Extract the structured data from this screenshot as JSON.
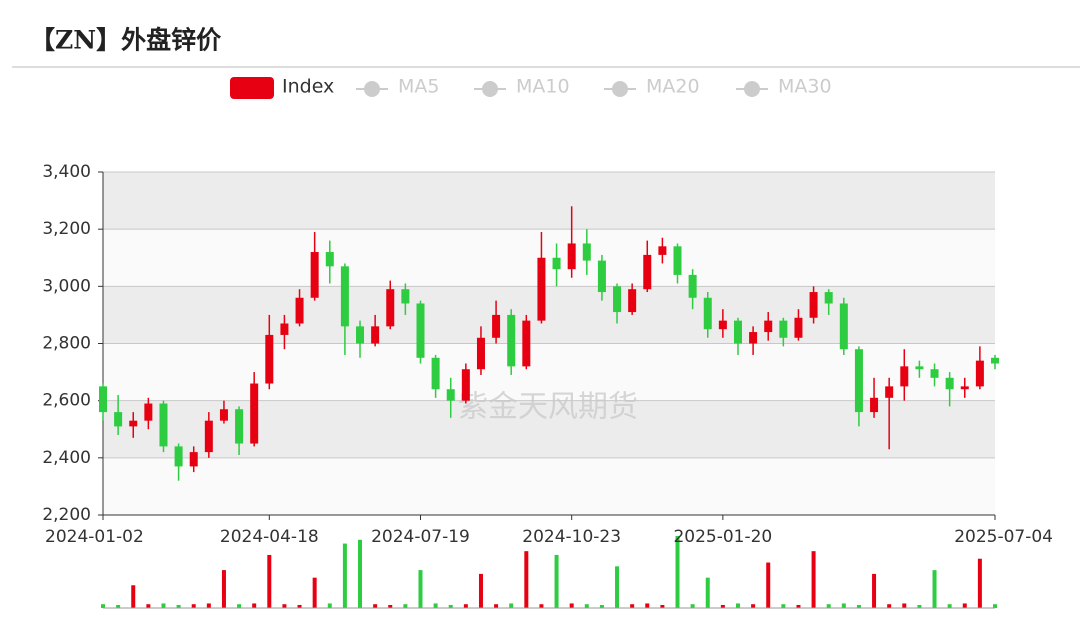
{
  "chart_data": {
    "type": "candlestick",
    "title": "【ZN】外盘锌价",
    "watermark": "紫金天风期货",
    "legend": [
      "Index",
      "MA5",
      "MA10",
      "MA20",
      "MA30"
    ],
    "up_color": "#e60012",
    "down_color": "#2ecc40",
    "categories": [
      "2024-01-02",
      null,
      null,
      null,
      null,
      null,
      null,
      null,
      null,
      null,
      null,
      "2024-04-18",
      null,
      null,
      null,
      null,
      null,
      null,
      null,
      null,
      null,
      "2024-07-19",
      null,
      null,
      null,
      null,
      null,
      null,
      null,
      null,
      null,
      "2024-10-23",
      null,
      null,
      null,
      null,
      null,
      null,
      null,
      null,
      null,
      "2025-01-20",
      null,
      null,
      null,
      null,
      null,
      null,
      null,
      null,
      null,
      null,
      null,
      null,
      null,
      null,
      null,
      null,
      null,
      "2025-07-04"
    ],
    "series": [
      {
        "name": "Index",
        "values": [
          [
            2650,
            2560,
            2530,
            2660
          ],
          [
            2560,
            2510,
            2480,
            2620
          ],
          [
            2510,
            2530,
            2470,
            2560
          ],
          [
            2530,
            2590,
            2500,
            2610
          ],
          [
            2590,
            2440,
            2420,
            2600
          ],
          [
            2440,
            2370,
            2320,
            2450
          ],
          [
            2370,
            2420,
            2350,
            2440
          ],
          [
            2420,
            2530,
            2400,
            2560
          ],
          [
            2530,
            2570,
            2520,
            2600
          ],
          [
            2570,
            2450,
            2410,
            2580
          ],
          [
            2450,
            2660,
            2440,
            2700
          ],
          [
            2660,
            2830,
            2640,
            2900
          ],
          [
            2830,
            2870,
            2780,
            2900
          ],
          [
            2870,
            2960,
            2860,
            2990
          ],
          [
            2960,
            3120,
            2950,
            3190
          ],
          [
            3120,
            3070,
            3010,
            3160
          ],
          [
            3070,
            2860,
            2760,
            3080
          ],
          [
            2860,
            2800,
            2750,
            2880
          ],
          [
            2800,
            2860,
            2790,
            2900
          ],
          [
            2860,
            2990,
            2850,
            3020
          ],
          [
            2990,
            2940,
            2900,
            3010
          ],
          [
            2940,
            2750,
            2730,
            2950
          ],
          [
            2750,
            2640,
            2610,
            2760
          ],
          [
            2640,
            2600,
            2540,
            2680
          ],
          [
            2600,
            2710,
            2590,
            2730
          ],
          [
            2710,
            2820,
            2690,
            2860
          ],
          [
            2820,
            2900,
            2800,
            2950
          ],
          [
            2900,
            2720,
            2690,
            2920
          ],
          [
            2720,
            2880,
            2710,
            2900
          ],
          [
            2880,
            3100,
            2870,
            3190
          ],
          [
            3100,
            3060,
            3000,
            3150
          ],
          [
            3060,
            3150,
            3030,
            3280
          ],
          [
            3150,
            3090,
            3040,
            3200
          ],
          [
            3090,
            2980,
            2950,
            3110
          ],
          [
            3000,
            2910,
            2870,
            3010
          ],
          [
            2910,
            2990,
            2900,
            3010
          ],
          [
            2990,
            3110,
            2980,
            3160
          ],
          [
            3110,
            3140,
            3080,
            3170
          ],
          [
            3140,
            3040,
            3010,
            3150
          ],
          [
            3040,
            2960,
            2920,
            3060
          ],
          [
            2960,
            2850,
            2820,
            2980
          ],
          [
            2850,
            2880,
            2820,
            2920
          ],
          [
            2880,
            2800,
            2760,
            2890
          ],
          [
            2800,
            2840,
            2760,
            2860
          ],
          [
            2840,
            2880,
            2810,
            2910
          ],
          [
            2880,
            2820,
            2790,
            2890
          ],
          [
            2820,
            2890,
            2810,
            2920
          ],
          [
            2890,
            2980,
            2870,
            3000
          ],
          [
            2980,
            2940,
            2900,
            2990
          ],
          [
            2940,
            2780,
            2760,
            2960
          ],
          [
            2780,
            2560,
            2510,
            2790
          ],
          [
            2560,
            2610,
            2540,
            2680
          ],
          [
            2610,
            2650,
            2430,
            2680
          ],
          [
            2650,
            2720,
            2600,
            2780
          ],
          [
            2720,
            2710,
            2680,
            2740
          ],
          [
            2710,
            2680,
            2650,
            2730
          ],
          [
            2680,
            2640,
            2580,
            2700
          ],
          [
            2640,
            2650,
            2610,
            2680
          ],
          [
            2650,
            2740,
            2640,
            2790
          ],
          [
            2750,
            2730,
            2710,
            2760
          ]
        ]
      }
    ],
    "volume": [
      5,
      4,
      30,
      5,
      6,
      4,
      5,
      6,
      50,
      5,
      6,
      70,
      5,
      4,
      40,
      6,
      85,
      90,
      5,
      4,
      5,
      50,
      6,
      4,
      5,
      45,
      5,
      6,
      75,
      5,
      70,
      6,
      5,
      4,
      55,
      5,
      6,
      4,
      95,
      5,
      40,
      4,
      6,
      5,
      60,
      5,
      4,
      75,
      5,
      6,
      4,
      45,
      5,
      6,
      4,
      50,
      5,
      6,
      65,
      5
    ],
    "ylim": [
      2200,
      3400
    ],
    "yticks": [
      {
        "value": 2200,
        "label": "2,200"
      },
      {
        "value": 2400,
        "label": "2,400"
      },
      {
        "value": 2600,
        "label": "2,600"
      },
      {
        "value": 2800,
        "label": "2,800"
      },
      {
        "value": 3000,
        "label": "3,000"
      },
      {
        "value": 3200,
        "label": "3,200"
      },
      {
        "value": 3400,
        "label": "3,400"
      }
    ]
  }
}
